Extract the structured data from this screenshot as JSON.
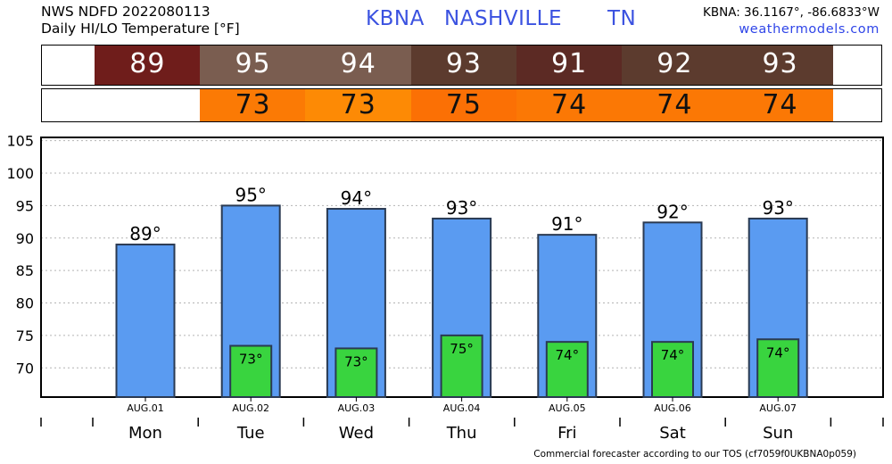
{
  "header": {
    "line1": "NWS NDFD 2022080113",
    "line2": "Daily HI/LO Temperature [°F]",
    "station_id": "KBNA",
    "station_name": "NASHVILLE",
    "state": "TN",
    "coords": "KBNA: 36.1167°, -86.6833°W",
    "site": "weathermodels.com"
  },
  "hi_strip": [
    {
      "value": "89",
      "color": "#6f1d1b"
    },
    {
      "value": "95",
      "color": "#7a5d50"
    },
    {
      "value": "94",
      "color": "#7a5d50"
    },
    {
      "value": "93",
      "color": "#5c3b2e"
    },
    {
      "value": "91",
      "color": "#5c2a24"
    },
    {
      "value": "92",
      "color": "#5c3b2e"
    },
    {
      "value": "93",
      "color": "#5c3b2e"
    }
  ],
  "lo_strip": [
    {
      "value": "",
      "color": "#ffffff"
    },
    {
      "value": "73",
      "color": "#fb7a05"
    },
    {
      "value": "73",
      "color": "#fd8a05"
    },
    {
      "value": "75",
      "color": "#fb7005"
    },
    {
      "value": "74",
      "color": "#fb7805"
    },
    {
      "value": "74",
      "color": "#fb7805"
    },
    {
      "value": "74",
      "color": "#fb7805"
    }
  ],
  "chart_data": {
    "type": "bar",
    "categories": [
      "AUG.01",
      "AUG.02",
      "AUG.03",
      "AUG.04",
      "AUG.05",
      "AUG.06",
      "AUG.07"
    ],
    "days": [
      "Mon",
      "Tue",
      "Wed",
      "Thu",
      "Fri",
      "Sat",
      "Sun"
    ],
    "series": [
      {
        "values": [
          89,
          95,
          94.5,
          93,
          90.5,
          92.4,
          93
        ],
        "labels": [
          "89°",
          "95°",
          "94°",
          "93°",
          "91°",
          "92°",
          "93°"
        ],
        "color": "#5a9bf1"
      },
      {
        "values": [
          null,
          73.4,
          73,
          75,
          74,
          74,
          74.4
        ],
        "labels": [
          "",
          "73°",
          "73°",
          "75°",
          "74°",
          "74°",
          "74°"
        ],
        "color": "#39d43f"
      }
    ],
    "ylim": [
      65.5,
      105.5
    ],
    "yticks": [
      70,
      75,
      80,
      85,
      90,
      95,
      100,
      105
    ],
    "grid": true
  },
  "footer": "Commercial forecaster according to our TOS (cf7059f0UKBNA0p059)"
}
